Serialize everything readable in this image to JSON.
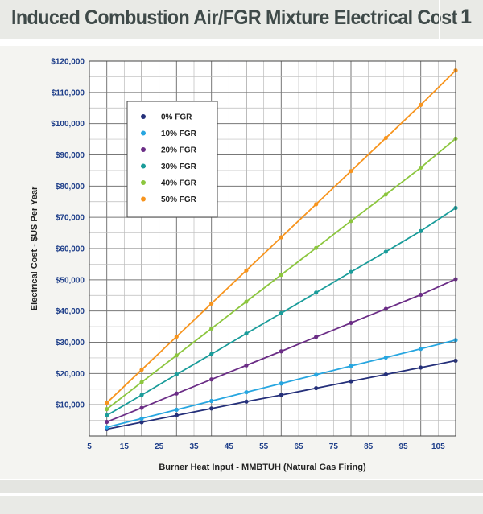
{
  "header": {
    "title": "Induced Combustion Air/FGR Mixture Electrical Cost",
    "number": "1"
  },
  "chart_data": {
    "type": "line",
    "title": "",
    "xlabel": "Burner Heat Input - MMBTUH (Natural Gas Firing)",
    "ylabel": "Electrical Cost - $US Per Year",
    "xlim": [
      5,
      110
    ],
    "ylim": [
      0,
      120000
    ],
    "x_ticks": [
      "5",
      "15",
      "25",
      "35",
      "45",
      "55",
      "65",
      "75",
      "85",
      "95",
      "105"
    ],
    "y_ticks": [
      "$10,000",
      "$20,000",
      "$30,000",
      "$40,000",
      "$50,000",
      "$60,000",
      "$70,000",
      "$80,000",
      "$90,000",
      "$100,000",
      "$110,000",
      "$120,000"
    ],
    "grid": true,
    "legend_position": "top-left",
    "x": [
      10,
      20,
      30,
      40,
      50,
      60,
      70,
      80,
      90,
      100,
      110
    ],
    "series": [
      {
        "name": "0% FGR",
        "color": "#25307a",
        "values": [
          2200,
          4400,
          6600,
          8800,
          11000,
          13100,
          15300,
          17500,
          19700,
          21900,
          24100
        ]
      },
      {
        "name": "10% FGR",
        "color": "#27a6e0",
        "values": [
          2800,
          5600,
          8400,
          11200,
          14000,
          16800,
          19600,
          22400,
          25100,
          27900,
          30700
        ]
      },
      {
        "name": "20% FGR",
        "color": "#6b2d86",
        "values": [
          4500,
          9000,
          13600,
          18100,
          22600,
          27100,
          31700,
          36200,
          40700,
          45200,
          50200
        ]
      },
      {
        "name": "30% FGR",
        "color": "#1a9c9a",
        "values": [
          6600,
          13100,
          19700,
          26200,
          32800,
          39300,
          45900,
          52500,
          59000,
          65600,
          73000
        ]
      },
      {
        "name": "40% FGR",
        "color": "#8cc63e",
        "values": [
          8600,
          17200,
          25800,
          34400,
          43000,
          51600,
          60200,
          68800,
          77300,
          85900,
          95200
        ]
      },
      {
        "name": "50% FGR",
        "color": "#f7941d",
        "values": [
          10600,
          21200,
          31800,
          42400,
          53000,
          63600,
          74200,
          84800,
          95400,
          106000,
          117000
        ]
      }
    ]
  }
}
